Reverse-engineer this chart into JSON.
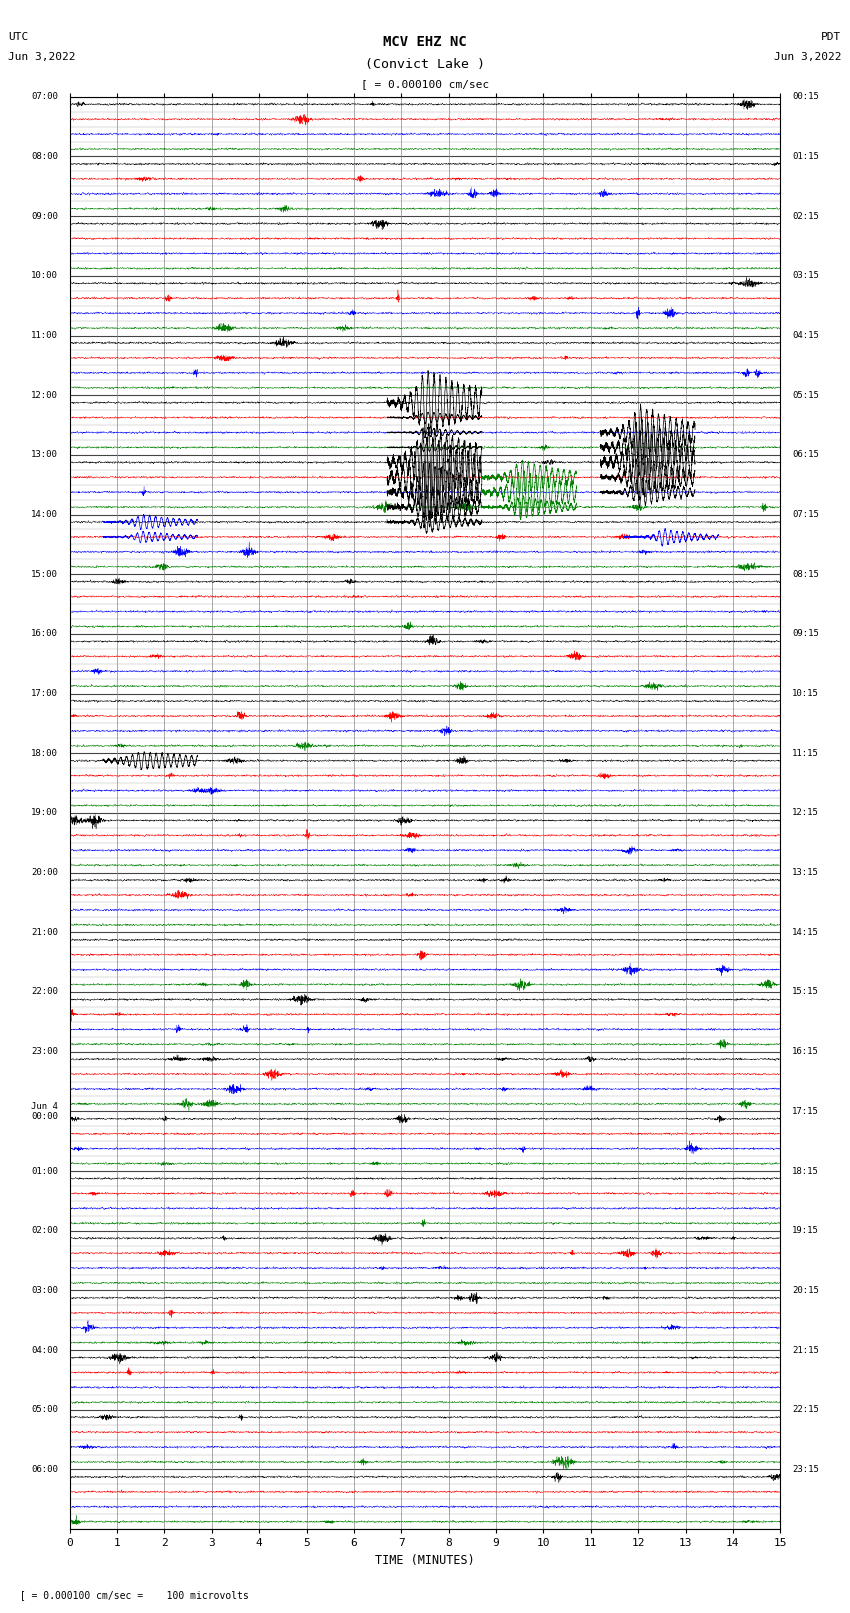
{
  "title_line1": "MCV EHZ NC",
  "title_line2": "(Convict Lake )",
  "title_line3": "[ = 0.000100 cm/sec",
  "utc_label": "UTC",
  "utc_date": "Jun 3,2022",
  "pdt_label": "PDT",
  "pdt_date": "Jun 3,2022",
  "xlabel": "TIME (MINUTES)",
  "footnote": "= 0.000100 cm/sec =    100 microvolts",
  "left_times": [
    "07:00",
    "08:00",
    "09:00",
    "10:00",
    "11:00",
    "12:00",
    "13:00",
    "14:00",
    "15:00",
    "16:00",
    "17:00",
    "18:00",
    "19:00",
    "20:00",
    "21:00",
    "22:00",
    "23:00",
    "Jun 4\n00:00",
    "01:00",
    "02:00",
    "03:00",
    "04:00",
    "05:00",
    "06:00"
  ],
  "right_times": [
    "00:15",
    "01:15",
    "02:15",
    "03:15",
    "04:15",
    "05:15",
    "06:15",
    "07:15",
    "08:15",
    "09:15",
    "10:15",
    "11:15",
    "12:15",
    "13:15",
    "14:15",
    "15:15",
    "16:15",
    "17:15",
    "18:15",
    "19:15",
    "20:15",
    "21:15",
    "22:15",
    "23:15"
  ],
  "num_hours": 24,
  "traces_per_hour": 4,
  "minutes_per_row": 15,
  "colors": [
    "black",
    "red",
    "blue",
    "green"
  ],
  "bg_color": "white",
  "grid_color": "#888888",
  "fig_width": 8.5,
  "fig_height": 16.13,
  "noise_amp": 0.012,
  "trace_linewidth": 0.3
}
